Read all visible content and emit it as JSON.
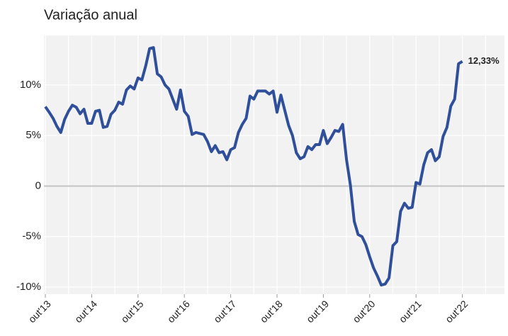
{
  "chart_data": {
    "type": "line",
    "title": "Variação anual",
    "categories": [
      "out'13",
      null,
      null,
      null,
      null,
      null,
      null,
      null,
      null,
      null,
      null,
      null,
      "out'14",
      null,
      null,
      null,
      null,
      null,
      null,
      null,
      null,
      null,
      null,
      null,
      "out'15",
      null,
      null,
      null,
      null,
      null,
      null,
      null,
      null,
      null,
      null,
      null,
      "out'16",
      null,
      null,
      null,
      null,
      null,
      null,
      null,
      null,
      null,
      null,
      null,
      "out'17",
      null,
      null,
      null,
      null,
      null,
      null,
      null,
      null,
      null,
      null,
      null,
      "out'18",
      null,
      null,
      null,
      null,
      null,
      null,
      null,
      null,
      null,
      null,
      null,
      "out'19",
      null,
      null,
      null,
      null,
      null,
      null,
      null,
      null,
      null,
      null,
      null,
      "out'20",
      null,
      null,
      null,
      null,
      null,
      null,
      null,
      null,
      null,
      null,
      null,
      "out'21",
      null,
      null,
      null,
      null,
      null,
      null,
      null,
      null,
      null,
      null,
      null,
      "out'22",
      null,
      null,
      null,
      null,
      null,
      null,
      null,
      null,
      null,
      null,
      null
    ],
    "series": [
      {
        "color": "#2f4f9a",
        "values": [
          7.85,
          7.3,
          6.7,
          5.9,
          5.3,
          6.6,
          7.4,
          8.0,
          7.8,
          7.15,
          7.6,
          6.2,
          6.2,
          7.4,
          7.5,
          5.8,
          5.9,
          7.1,
          7.5,
          8.3,
          8.1,
          9.5,
          9.9,
          9.6,
          10.7,
          10.5,
          11.9,
          13.6,
          13.7,
          11.1,
          10.8,
          10.0,
          9.6,
          8.6,
          7.6,
          9.5,
          7.4,
          6.9,
          5.1,
          5.3,
          5.2,
          5.1,
          4.4,
          3.4,
          4.0,
          3.3,
          3.4,
          2.6,
          3.6,
          3.8,
          5.3,
          6.1,
          6.7,
          8.9,
          8.6,
          9.4,
          9.4,
          9.4,
          9.1,
          9.4,
          7.3,
          9.0,
          7.5,
          6.0,
          5.0,
          3.3,
          2.7,
          2.9,
          3.9,
          3.6,
          4.1,
          4.1,
          5.5,
          4.2,
          4.8,
          5.5,
          5.4,
          6.1,
          2.6,
          0.1,
          -3.5,
          -4.8,
          -5.0,
          -5.8,
          -7.0,
          -8.1,
          -8.9,
          -9.8,
          -9.7,
          -9.1,
          -5.9,
          -5.5,
          -2.5,
          -1.7,
          -2.2,
          -2.1,
          0.35,
          0.2,
          2.1,
          3.3,
          3.6,
          2.5,
          2.9,
          4.9,
          5.8,
          7.9,
          8.6,
          12.1,
          12.33,
          null,
          null,
          null,
          null,
          null,
          null,
          null,
          null,
          null,
          null,
          null
        ],
        "value_labels": [
          null,
          null,
          null,
          null,
          null,
          null,
          null,
          null,
          null,
          null,
          null,
          null,
          null,
          null,
          null,
          null,
          null,
          null,
          null,
          null,
          null,
          null,
          null,
          null,
          null,
          null,
          null,
          null,
          null,
          null,
          null,
          null,
          null,
          null,
          null,
          null,
          null,
          null,
          null,
          null,
          null,
          null,
          null,
          null,
          null,
          null,
          null,
          null,
          null,
          null,
          null,
          null,
          null,
          null,
          null,
          null,
          null,
          null,
          null,
          null,
          null,
          null,
          null,
          null,
          null,
          null,
          null,
          null,
          null,
          null,
          null,
          null,
          null,
          null,
          null,
          null,
          null,
          null,
          null,
          null,
          null,
          null,
          null,
          null,
          null,
          null,
          null,
          null,
          null,
          null,
          null,
          null,
          null,
          null,
          null,
          null,
          null,
          null,
          null,
          null,
          null,
          null,
          null,
          null,
          null,
          null,
          null,
          null,
          "12,33%",
          null,
          null,
          null,
          null,
          null,
          null,
          null,
          null,
          null,
          null,
          null
        ]
      }
    ],
    "ylim": [
      -10.7,
      14.9
    ],
    "yticks": [
      {
        "value": -10,
        "label": "-10%"
      },
      {
        "value": -5,
        "label": "-5%"
      },
      0,
      {
        "value": 5,
        "label": "5%"
      },
      {
        "value": 10,
        "label": "10%"
      }
    ],
    "grid": true
  }
}
